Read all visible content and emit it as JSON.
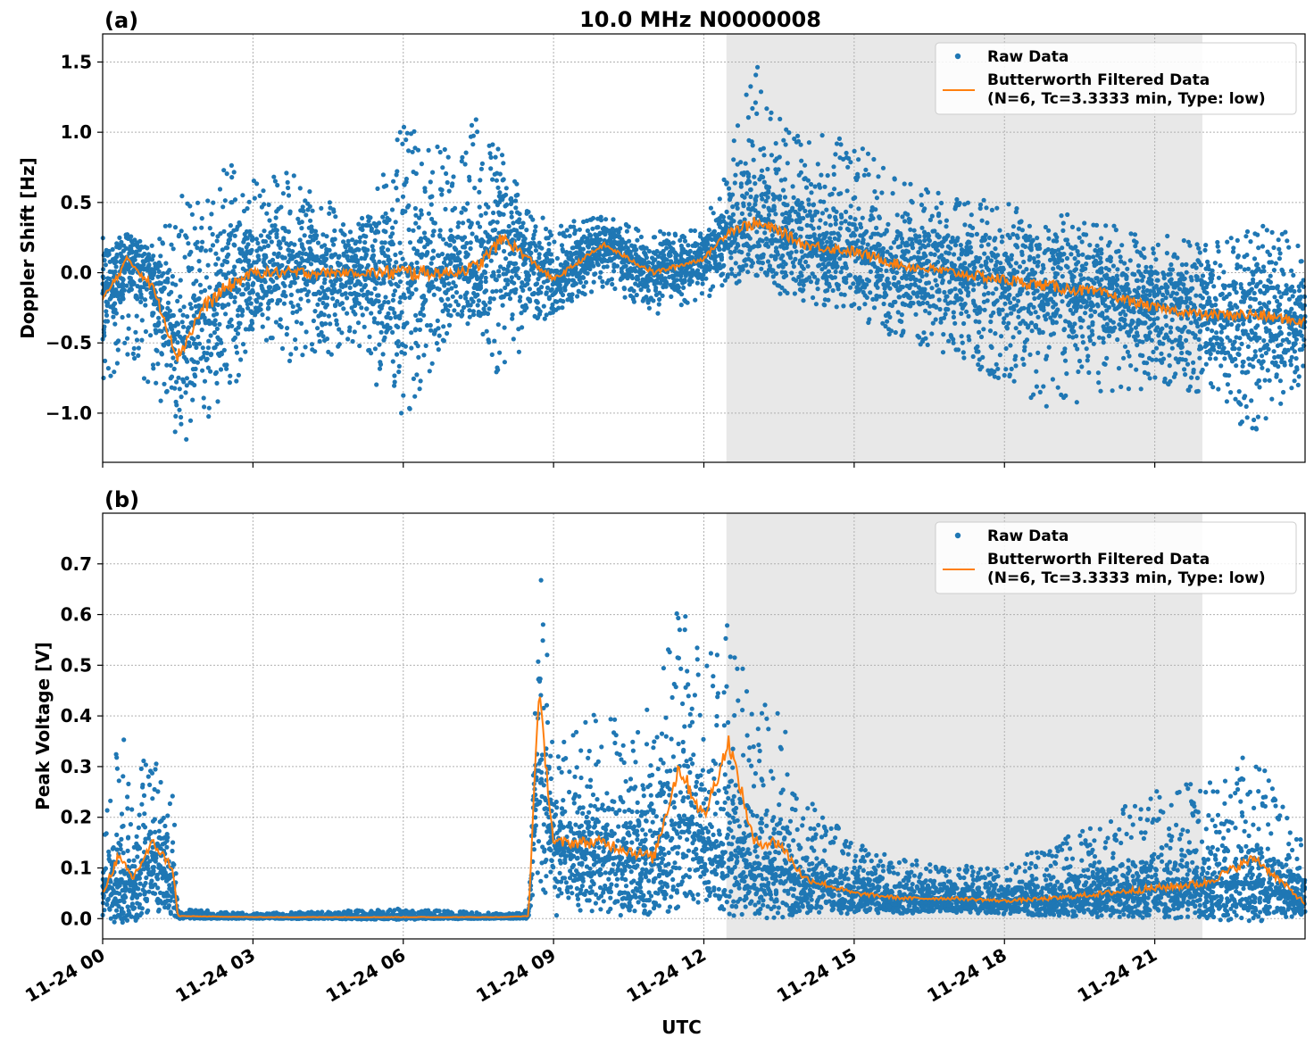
{
  "chart_data": [
    {
      "type": "scatter",
      "panel_label": "(a)",
      "title": "10.0 MHz N0000008",
      "xlabel": "",
      "ylabel": "Doppler Shift [Hz]",
      "xlim_hours": [
        0,
        24
      ],
      "ylim": [
        -1.35,
        1.7
      ],
      "yticks": [
        1.5,
        1.0,
        0.5,
        0.0,
        -0.5,
        -1.0
      ],
      "ytick_labels": [
        "1.5",
        "1.0",
        "0.5",
        "0.0",
        "−0.5",
        "−1.0"
      ],
      "grid": true,
      "legend": "top-right",
      "shaded_region_hours": [
        12.45,
        21.95
      ],
      "series": [
        {
          "name": "Raw Data",
          "kind": "points",
          "color": "#1f77b4",
          "x_hours": [
            0,
            0.5,
            1,
            1.5,
            2,
            2.5,
            3,
            4,
            5,
            6,
            7,
            7.5,
            8,
            8.5,
            9,
            10,
            11,
            12,
            12.5,
            13,
            13.5,
            14,
            15,
            16,
            17,
            18,
            19,
            20,
            21,
            22,
            23,
            24
          ],
          "y_center": [
            -0.2,
            0.1,
            -0.1,
            -0.5,
            -0.3,
            -0.1,
            0.0,
            0.0,
            0.0,
            0.0,
            0.0,
            0.05,
            0.25,
            0.1,
            -0.05,
            0.2,
            0.0,
            0.1,
            0.3,
            0.35,
            0.3,
            0.2,
            0.15,
            0.05,
            0.0,
            -0.05,
            -0.1,
            -0.15,
            -0.25,
            -0.3,
            -0.3,
            -0.35
          ],
          "y_min": [
            -0.9,
            -0.6,
            -0.85,
            -1.2,
            -1.2,
            -1.0,
            -0.45,
            -0.7,
            -0.5,
            -1.15,
            -0.35,
            -0.4,
            -0.85,
            -0.4,
            -0.3,
            -0.1,
            -0.3,
            -0.2,
            -0.1,
            -0.05,
            -0.15,
            -0.2,
            -0.3,
            -0.5,
            -0.6,
            -0.8,
            -1.0,
            -0.9,
            -0.8,
            -0.9,
            -1.15,
            -0.75
          ],
          "y_max": [
            0.25,
            0.25,
            0.2,
            0.55,
            0.55,
            0.85,
            0.7,
            0.75,
            0.3,
            1.05,
            0.85,
            1.2,
            0.85,
            0.45,
            0.35,
            0.4,
            0.3,
            0.3,
            0.9,
            1.55,
            1.1,
            1.0,
            0.95,
            0.65,
            0.55,
            0.5,
            0.45,
            0.35,
            0.3,
            0.2,
            0.35,
            0.25
          ]
        },
        {
          "name": "Butterworth Filtered Data\n(N=6, Tc=3.3333 min, Type: low)",
          "kind": "line",
          "color": "#ff7f0e",
          "x_hours": [
            0,
            0.5,
            1,
            1.5,
            2,
            2.5,
            3,
            4,
            5,
            6,
            7,
            7.5,
            8,
            8.5,
            9,
            10,
            11,
            12,
            12.5,
            13,
            13.5,
            14,
            15,
            16,
            17,
            18,
            19,
            20,
            21,
            22,
            23,
            24
          ],
          "y": [
            -0.2,
            0.1,
            -0.1,
            -0.6,
            -0.25,
            -0.1,
            0.0,
            0.0,
            0.0,
            0.0,
            0.0,
            0.05,
            0.25,
            0.1,
            -0.05,
            0.2,
            0.0,
            0.1,
            0.3,
            0.35,
            0.3,
            0.2,
            0.15,
            0.05,
            0.0,
            -0.05,
            -0.1,
            -0.15,
            -0.25,
            -0.3,
            -0.3,
            -0.35
          ]
        }
      ]
    },
    {
      "type": "scatter",
      "panel_label": "(b)",
      "title": "",
      "xlabel": "UTC",
      "ylabel": "Peak Voltage [V]",
      "xlim_hours": [
        0,
        24
      ],
      "ylim": [
        -0.04,
        0.8
      ],
      "yticks": [
        0.7,
        0.6,
        0.5,
        0.4,
        0.3,
        0.2,
        0.1,
        0.0
      ],
      "ytick_labels": [
        "0.7",
        "0.6",
        "0.5",
        "0.4",
        "0.3",
        "0.2",
        "0.1",
        "0.0"
      ],
      "xticks_hours": [
        0,
        3,
        6,
        9,
        12,
        15,
        18,
        21
      ],
      "xtick_labels": [
        "11-24 00",
        "11-24 03",
        "11-24 06",
        "11-24 09",
        "11-24 12",
        "11-24 15",
        "11-24 18",
        "11-24 21"
      ],
      "grid": true,
      "legend": "top-right",
      "shaded_region_hours": [
        12.45,
        21.95
      ],
      "series": [
        {
          "name": "Raw Data",
          "kind": "points",
          "color": "#1f77b4",
          "x_hours": [
            0,
            0.3,
            0.6,
            1.0,
            1.4,
            1.5,
            3,
            6,
            8,
            8.5,
            8.7,
            9,
            10,
            11,
            11.5,
            12,
            12.5,
            13,
            13.5,
            14,
            15,
            16,
            17,
            18,
            19,
            20,
            21,
            22,
            23,
            24
          ],
          "y_center": [
            0.05,
            0.08,
            0.07,
            0.12,
            0.08,
            0.005,
            0.003,
            0.003,
            0.003,
            0.005,
            0.3,
            0.15,
            0.12,
            0.12,
            0.2,
            0.15,
            0.15,
            0.1,
            0.1,
            0.08,
            0.05,
            0.04,
            0.04,
            0.035,
            0.04,
            0.05,
            0.06,
            0.07,
            0.07,
            0.04
          ],
          "y_min": [
            0.0,
            0.0,
            0.0,
            0.01,
            0.0,
            0.0,
            0.0,
            0.0,
            0.0,
            0.0,
            0.05,
            0.0,
            0.01,
            0.0,
            0.01,
            0.02,
            0.02,
            0.02,
            0.01,
            0.01,
            0.01,
            0.01,
            0.01,
            0.01,
            0.01,
            0.01,
            0.01,
            0.01,
            0.01,
            0.01
          ],
          "y_max": [
            0.18,
            0.37,
            0.36,
            0.32,
            0.3,
            0.02,
            0.01,
            0.02,
            0.01,
            0.02,
            0.76,
            0.35,
            0.42,
            0.42,
            0.63,
            0.52,
            0.61,
            0.4,
            0.45,
            0.25,
            0.15,
            0.12,
            0.11,
            0.12,
            0.15,
            0.2,
            0.26,
            0.29,
            0.33,
            0.15
          ]
        },
        {
          "name": "Butterworth Filtered Data\n(N=6, Tc=3.3333 min, Type: low)",
          "kind": "line",
          "color": "#ff7f0e",
          "x_hours": [
            0,
            0.3,
            0.6,
            1.0,
            1.4,
            1.5,
            3,
            6,
            8,
            8.5,
            8.7,
            9,
            10,
            11,
            11.5,
            12,
            12.5,
            13,
            13.5,
            14,
            15,
            16,
            17,
            18,
            19,
            20,
            21,
            22,
            23,
            24
          ],
          "y": [
            0.05,
            0.12,
            0.08,
            0.15,
            0.1,
            0.005,
            0.003,
            0.003,
            0.003,
            0.005,
            0.45,
            0.15,
            0.15,
            0.12,
            0.3,
            0.2,
            0.35,
            0.15,
            0.15,
            0.08,
            0.05,
            0.04,
            0.04,
            0.035,
            0.04,
            0.05,
            0.06,
            0.07,
            0.12,
            0.03
          ]
        }
      ]
    }
  ]
}
